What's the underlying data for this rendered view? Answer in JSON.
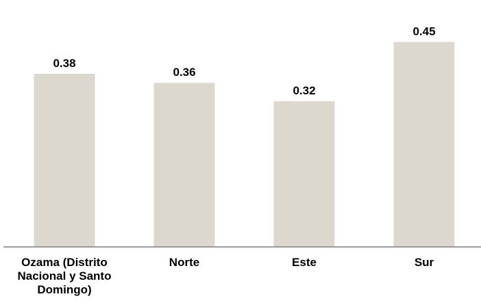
{
  "chart_data": {
    "type": "bar",
    "categories": [
      "Ozama  (Distrito Nacional y Santo Domingo)",
      "Norte",
      "Este",
      "Sur"
    ],
    "values": [
      0.38,
      0.36,
      0.32,
      0.45
    ],
    "value_labels": [
      "0.38",
      "0.36",
      "0.32",
      "0.45"
    ],
    "title": "",
    "xlabel": "",
    "ylabel": "",
    "ylim": [
      0,
      0.5
    ],
    "grid": false,
    "legend": "none",
    "bar_color": "#DDD8CE",
    "axis_color": "#7F7F7F",
    "text_color": "#000000"
  }
}
